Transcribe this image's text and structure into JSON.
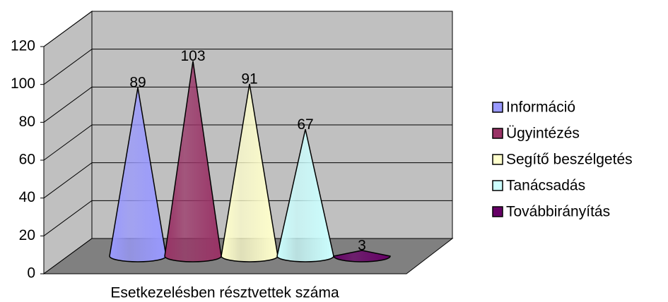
{
  "chart_data": {
    "type": "cone",
    "categories": [
      "Esetkezelésben résztvettek száma"
    ],
    "series": [
      {
        "name": "Információ",
        "color": "#9999ff",
        "values": [
          89
        ]
      },
      {
        "name": "Ügyintézés",
        "color": "#993366",
        "values": [
          103
        ]
      },
      {
        "name": "Segítő beszélgetés",
        "color": "#ffffcc",
        "values": [
          91
        ]
      },
      {
        "name": "Tanácsadás",
        "color": "#ccffff",
        "values": [
          67
        ]
      },
      {
        "name": "Továbbirányítás",
        "color": "#660066",
        "values": [
          3
        ]
      }
    ],
    "ylim": [
      0,
      120
    ],
    "yticks": [
      0,
      20,
      40,
      60,
      80,
      100,
      120
    ],
    "grid": true,
    "legend": "right"
  }
}
